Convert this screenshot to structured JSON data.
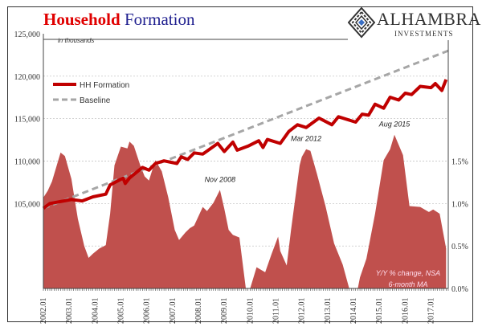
{
  "header": {
    "title_part1": "Household",
    "title_part2": "Formation",
    "logo_name": "ALHAMBRA",
    "logo_sub": "INVESTMENTS"
  },
  "chart_data": {
    "type": "line+area",
    "title": "Household Formation",
    "unit_note": "in thousands",
    "x_type": "date",
    "x_tick_labels": [
      "2002.01",
      "2003.01",
      "2004.01",
      "2005.01",
      "2006.01",
      "2007.01",
      "2008.01",
      "2009.01",
      "2010.01",
      "2011.01",
      "2012.01",
      "2013.01",
      "2014.01",
      "2015.01",
      "2016.01",
      "2017.01"
    ],
    "xlim": [
      "2002-01",
      "2017-09"
    ],
    "y_left": {
      "range": [
        95000,
        125000
      ],
      "ticks": [
        105000,
        110000,
        115000,
        120000,
        125000
      ],
      "tick_labels": [
        "105,000",
        "110,000",
        "115,000",
        "120,000",
        "125,000"
      ]
    },
    "y_right": {
      "range": [
        0,
        3.0
      ],
      "ticks": [
        0,
        0.5,
        1.0,
        1.5
      ],
      "tick_labels": [
        "0.0%",
        "0.5%",
        "1.0%",
        "1.5%"
      ]
    },
    "grid": true,
    "legend": {
      "placement": "top-left",
      "entries": [
        "HH Formation",
        "Baseline"
      ]
    },
    "colors": {
      "hh": "#c00000",
      "baseline": "#a6a6a6",
      "area": "#c0504d"
    },
    "series": [
      {
        "name": "HH Formation",
        "axis": "left",
        "style": "line",
        "points": [
          [
            "2002-01",
            104430
          ],
          [
            "2002-04",
            105000
          ],
          [
            "2003-02",
            105470
          ],
          [
            "2003-07",
            105310
          ],
          [
            "2003-12",
            105790
          ],
          [
            "2004-06",
            106100
          ],
          [
            "2004-08",
            107200
          ],
          [
            "2005-02",
            107990
          ],
          [
            "2005-03",
            107360
          ],
          [
            "2005-05",
            108000
          ],
          [
            "2005-11",
            109250
          ],
          [
            "2006-02",
            108930
          ],
          [
            "2006-05",
            109720
          ],
          [
            "2006-09",
            110030
          ],
          [
            "2007-03",
            109720
          ],
          [
            "2007-05",
            110500
          ],
          [
            "2007-08",
            110190
          ],
          [
            "2007-11",
            110970
          ],
          [
            "2008-03",
            110820
          ],
          [
            "2008-10",
            112080
          ],
          [
            "2009-01",
            111130
          ],
          [
            "2009-05",
            112230
          ],
          [
            "2009-07",
            111290
          ],
          [
            "2009-12",
            111760
          ],
          [
            "2010-05",
            112390
          ],
          [
            "2010-07",
            111600
          ],
          [
            "2010-09",
            112550
          ],
          [
            "2011-03",
            112080
          ],
          [
            "2011-07",
            113490
          ],
          [
            "2011-11",
            114280
          ],
          [
            "2012-03",
            113960
          ],
          [
            "2012-09",
            115060
          ],
          [
            "2013-03",
            114280
          ],
          [
            "2013-06",
            115220
          ],
          [
            "2014-02",
            114590
          ],
          [
            "2014-05",
            115530
          ],
          [
            "2014-08",
            115400
          ],
          [
            "2014-11",
            116700
          ],
          [
            "2015-03",
            116230
          ],
          [
            "2015-06",
            117520
          ],
          [
            "2015-10",
            117190
          ],
          [
            "2016-01",
            118000
          ],
          [
            "2016-04",
            117840
          ],
          [
            "2016-08",
            118800
          ],
          [
            "2017-01",
            118650
          ],
          [
            "2017-03",
            119130
          ],
          [
            "2017-06",
            118320
          ],
          [
            "2017-08",
            119610
          ]
        ]
      },
      {
        "name": "Baseline",
        "axis": "left",
        "style": "dashed",
        "points": [
          [
            "2002-01",
            104430
          ],
          [
            "2017-09",
            123000
          ]
        ]
      },
      {
        "name": "Y/Y % change, NSA 6-month MA",
        "axis": "right",
        "style": "area",
        "points": [
          [
            "2002-01",
            1.07
          ],
          [
            "2002-03",
            1.15
          ],
          [
            "2002-05",
            1.26
          ],
          [
            "2002-09",
            1.6
          ],
          [
            "2002-11",
            1.56
          ],
          [
            "2003-02",
            1.29
          ],
          [
            "2003-05",
            0.82
          ],
          [
            "2003-08",
            0.5
          ],
          [
            "2003-10",
            0.36
          ],
          [
            "2003-12",
            0.41
          ],
          [
            "2004-03",
            0.47
          ],
          [
            "2004-06",
            0.51
          ],
          [
            "2004-08",
            0.88
          ],
          [
            "2004-10",
            1.45
          ],
          [
            "2005-01",
            1.67
          ],
          [
            "2005-04",
            1.65
          ],
          [
            "2005-05",
            1.73
          ],
          [
            "2005-07",
            1.68
          ],
          [
            "2005-10",
            1.45
          ],
          [
            "2005-12",
            1.32
          ],
          [
            "2006-02",
            1.27
          ],
          [
            "2006-05",
            1.51
          ],
          [
            "2006-08",
            1.38
          ],
          [
            "2006-11",
            1.07
          ],
          [
            "2007-02",
            0.69
          ],
          [
            "2007-04",
            0.57
          ],
          [
            "2007-07",
            0.66
          ],
          [
            "2007-09",
            0.71
          ],
          [
            "2007-11",
            0.74
          ],
          [
            "2008-03",
            0.96
          ],
          [
            "2008-05",
            0.91
          ],
          [
            "2008-08",
            1.01
          ],
          [
            "2008-11",
            1.16
          ],
          [
            "2009-01",
            0.94
          ],
          [
            "2009-03",
            0.69
          ],
          [
            "2009-05",
            0.63
          ],
          [
            "2009-08",
            0.6
          ],
          [
            "2009-11",
            0.0
          ],
          [
            "2010-01",
            0.0
          ],
          [
            "2010-04",
            0.25
          ],
          [
            "2010-08",
            0.19
          ],
          [
            "2010-11",
            0.41
          ],
          [
            "2011-02",
            0.61
          ],
          [
            "2011-03",
            0.44
          ],
          [
            "2011-06",
            0.27
          ],
          [
            "2011-08",
            0.69
          ],
          [
            "2011-12",
            1.45
          ],
          [
            "2012-01",
            1.55
          ],
          [
            "2012-03",
            1.64
          ],
          [
            "2012-05",
            1.62
          ],
          [
            "2012-08",
            1.35
          ],
          [
            "2012-12",
            0.97
          ],
          [
            "2013-04",
            0.53
          ],
          [
            "2013-08",
            0.28
          ],
          [
            "2013-11",
            0.0
          ],
          [
            "2014-03",
            0.0
          ],
          [
            "2014-04",
            0.13
          ],
          [
            "2014-07",
            0.35
          ],
          [
            "2014-11",
            0.88
          ],
          [
            "2015-03",
            1.51
          ],
          [
            "2015-06",
            1.64
          ],
          [
            "2015-08",
            1.81
          ],
          [
            "2015-12",
            1.57
          ],
          [
            "2016-03",
            0.97
          ],
          [
            "2016-08",
            0.96
          ],
          [
            "2016-12",
            0.9
          ],
          [
            "2017-02",
            0.93
          ],
          [
            "2017-05",
            0.88
          ],
          [
            "2017-08",
            0.47
          ]
        ]
      }
    ],
    "annotations": [
      {
        "text": "Nov 2008",
        "at": [
          "2008-11",
          1.16
        ]
      },
      {
        "text": "Mar 2012",
        "at": [
          "2012-03",
          1.64
        ]
      },
      {
        "text": "Aug 2015",
        "at": [
          "2015-08",
          1.81
        ]
      }
    ],
    "area_label": [
      "Y/Y % change, NSA",
      "6-month MA"
    ]
  }
}
